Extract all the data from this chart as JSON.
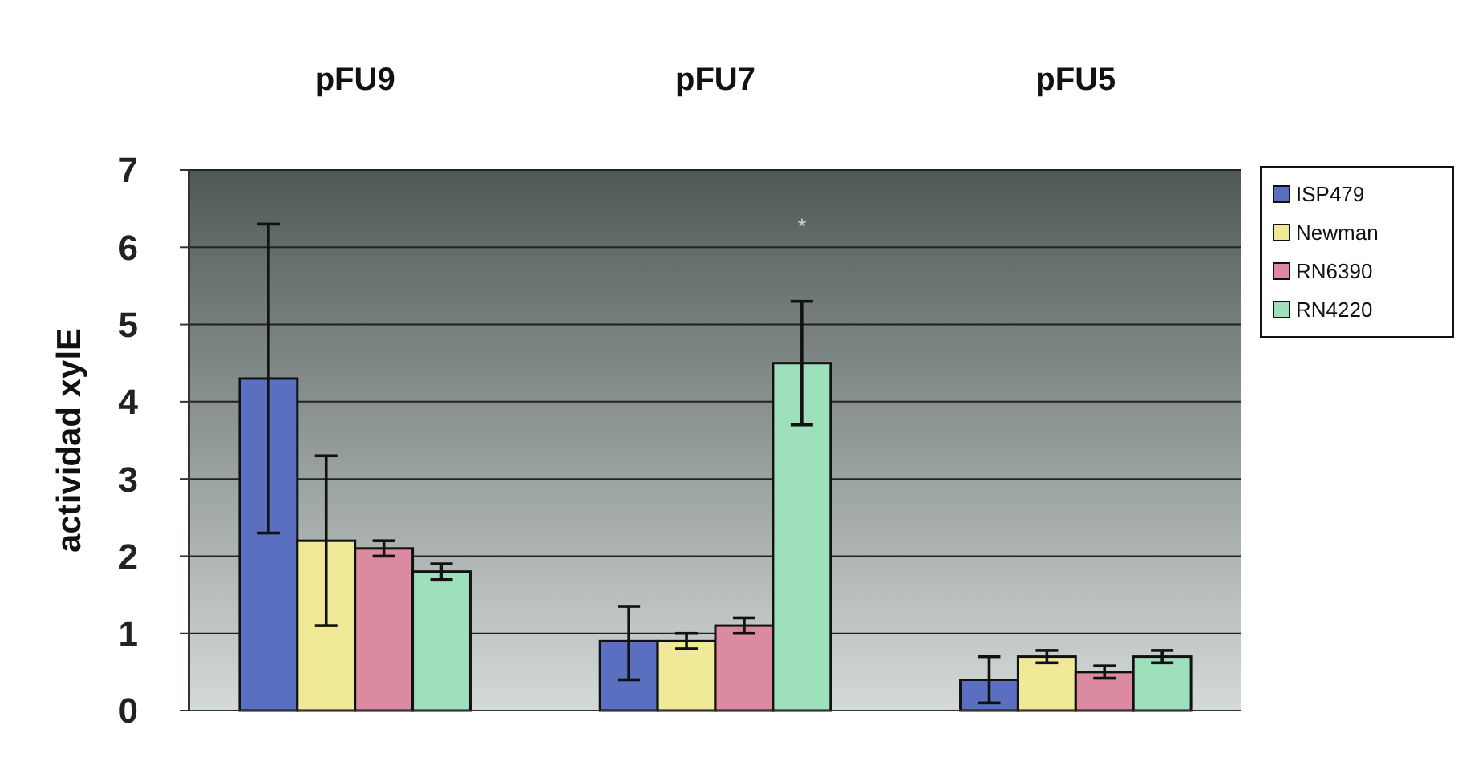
{
  "chart_data": {
    "type": "bar",
    "ylabel": "actividad xylE",
    "categories": [
      "pFU9",
      "pFU7",
      "pFU5"
    ],
    "series": [
      {
        "name": "ISP479",
        "color": "#5b6fc0",
        "values": [
          4.3,
          0.9,
          0.4
        ],
        "errors": [
          2.0,
          [
            0.4,
            1.35
          ],
          0.3
        ]
      },
      {
        "name": "Newman",
        "color": "#f0ea98",
        "values": [
          2.2,
          0.9,
          0.7
        ],
        "errors": [
          1.1,
          0.1,
          0.08
        ]
      },
      {
        "name": "RN6390",
        "color": "#dc8aa0",
        "values": [
          2.1,
          1.1,
          0.5
        ],
        "errors": [
          0.1,
          0.1,
          0.08
        ]
      },
      {
        "name": "RN4220",
        "color": "#9ee0bc",
        "values": [
          1.8,
          4.5,
          0.7
        ],
        "errors": [
          0.1,
          [
            3.7,
            5.3
          ],
          0.08
        ]
      }
    ],
    "ylim": [
      0,
      7
    ],
    "yticks": [
      0,
      1,
      2,
      3,
      4,
      5,
      6,
      7
    ],
    "grid": "y",
    "legend": "right",
    "annotations": [
      "*"
    ]
  }
}
